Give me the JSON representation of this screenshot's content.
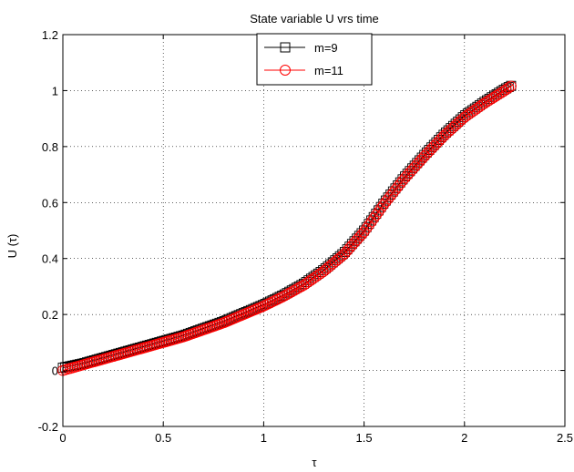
{
  "chart_data": {
    "type": "line",
    "title": "State variable U vrs time",
    "xlabel": "τ",
    "ylabel": "U (τ)",
    "xlim": [
      0,
      2.5
    ],
    "ylim": [
      -0.2,
      1.2
    ],
    "xticks": [
      0,
      0.5,
      1,
      1.5,
      2,
      2.5
    ],
    "yticks": [
      -0.2,
      0,
      0.2,
      0.4,
      0.6,
      0.8,
      1,
      1.2
    ],
    "xtick_labels": [
      "0",
      "0.5",
      "1",
      "1.5",
      "2",
      "2.5"
    ],
    "ytick_labels": [
      "-0.2",
      "0",
      "0.2",
      "0.4",
      "0.6",
      "0.8",
      "1",
      "1.2"
    ],
    "grid": true,
    "legend_position": "top-center",
    "series": [
      {
        "name": "m=9",
        "color": "#000000",
        "marker": "square",
        "x": [
          0,
          0.1,
          0.2,
          0.3,
          0.4,
          0.5,
          0.6,
          0.7,
          0.8,
          0.9,
          1.0,
          1.1,
          1.2,
          1.3,
          1.4,
          1.5,
          1.6,
          1.7,
          1.8,
          1.9,
          2.0,
          2.1,
          2.2,
          2.24
        ],
        "y": [
          0.01,
          0.025,
          0.045,
          0.065,
          0.085,
          0.105,
          0.125,
          0.15,
          0.175,
          0.205,
          0.235,
          0.27,
          0.31,
          0.36,
          0.42,
          0.5,
          0.6,
          0.69,
          0.77,
          0.845,
          0.91,
          0.96,
          1.005,
          1.02
        ]
      },
      {
        "name": "m=11",
        "color": "#ff0000",
        "marker": "circle",
        "x": [
          0,
          0.1,
          0.2,
          0.3,
          0.4,
          0.5,
          0.6,
          0.7,
          0.8,
          0.9,
          1.0,
          1.1,
          1.2,
          1.3,
          1.4,
          1.5,
          1.6,
          1.7,
          1.8,
          1.9,
          2.0,
          2.1,
          2.2,
          2.24
        ],
        "y": [
          0.0,
          0.02,
          0.04,
          0.06,
          0.08,
          0.1,
          0.12,
          0.145,
          0.17,
          0.2,
          0.23,
          0.265,
          0.305,
          0.355,
          0.415,
          0.495,
          0.595,
          0.685,
          0.765,
          0.84,
          0.905,
          0.955,
          1.0,
          1.02
        ]
      }
    ]
  }
}
